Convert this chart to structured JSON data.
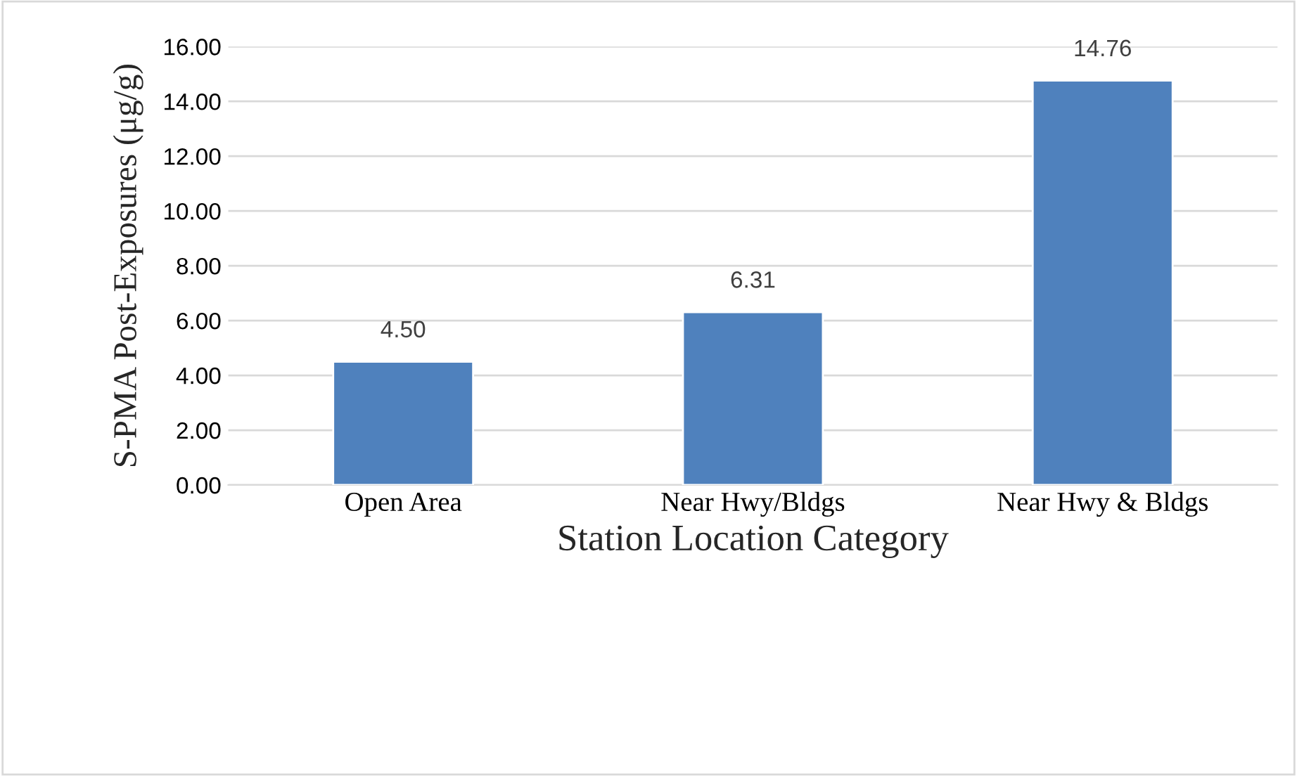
{
  "chart_data": {
    "type": "bar",
    "xlabel": "Station Location Category",
    "ylabel": "S-PMA Post-Exposures (μg/g)",
    "categories": [
      "Open Area",
      "Near Hwy/Bldgs",
      "Near Hwy & Bldgs"
    ],
    "values": [
      4.5,
      6.31,
      14.76
    ],
    "value_labels": [
      "4.50",
      "6.31",
      "14.76"
    ],
    "color": "#4f81bd",
    "ylim": [
      0,
      16
    ],
    "yticks": [
      {
        "value": 0,
        "label": "0.00"
      },
      {
        "value": 2,
        "label": "2.00"
      },
      {
        "value": 4,
        "label": "4.00"
      },
      {
        "value": 6,
        "label": "6.00"
      },
      {
        "value": 8,
        "label": "8.00"
      },
      {
        "value": 10,
        "label": "10.00"
      },
      {
        "value": 12,
        "label": "12.00"
      },
      {
        "value": 14,
        "label": "14.00"
      },
      {
        "value": 16,
        "label": "16.00"
      }
    ],
    "grid": "y"
  }
}
